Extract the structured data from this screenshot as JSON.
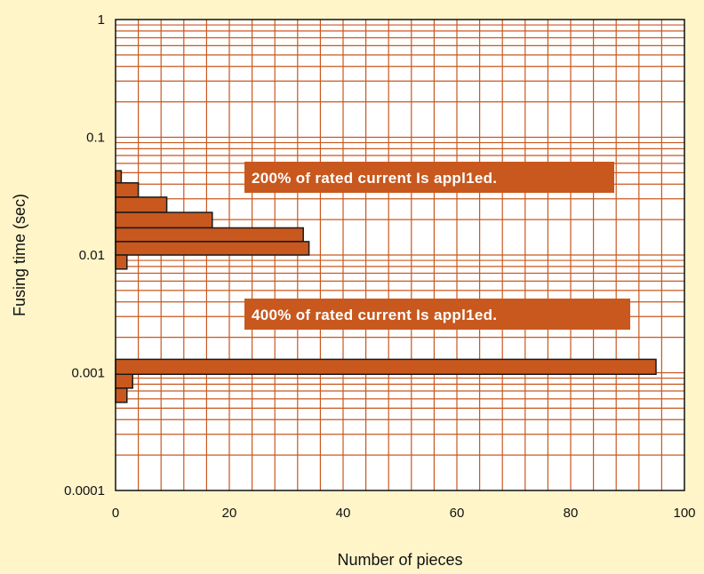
{
  "chart_data": {
    "type": "bar",
    "orientation": "horizontal",
    "xlabel": "Number of pieces",
    "ylabel": "Fusing time (sec)",
    "xlim": [
      0,
      100
    ],
    "ylim": [
      0.0001,
      1
    ],
    "yscale": "log",
    "grid": true,
    "x_ticks": [
      "0",
      "20",
      "40",
      "60",
      "80",
      "100"
    ],
    "y_ticks": [
      "1",
      "0.1",
      "0.01",
      "0.001",
      "0.0001"
    ],
    "series": [
      {
        "name": "200% of rated current Is appl1ed.",
        "bars": [
          {
            "y_low": 0.041,
            "y_high": 0.052,
            "value": 1
          },
          {
            "y_low": 0.031,
            "y_high": 0.041,
            "value": 4
          },
          {
            "y_low": 0.023,
            "y_high": 0.031,
            "value": 9
          },
          {
            "y_low": 0.017,
            "y_high": 0.023,
            "value": 17
          },
          {
            "y_low": 0.013,
            "y_high": 0.017,
            "value": 33
          },
          {
            "y_low": 0.01,
            "y_high": 0.013,
            "value": 34
          },
          {
            "y_low": 0.0076,
            "y_high": 0.01,
            "value": 2
          }
        ]
      },
      {
        "name": "400% of rated current Is appl1ed.",
        "bars": [
          {
            "y_low": 0.00097,
            "y_high": 0.0013,
            "value": 95
          },
          {
            "y_low": 0.00074,
            "y_high": 0.00097,
            "value": 3
          },
          {
            "y_low": 0.00056,
            "y_high": 0.00074,
            "value": 2
          }
        ]
      }
    ],
    "annotations": [
      "200% of rated current Is appl1ed.",
      "400% of rated current Is appl1ed."
    ],
    "colors": {
      "background": "#fff5c9",
      "plot_background": "#ffffff",
      "grid": "#c8581e",
      "bar_fill": "#c8581e",
      "bar_stroke": "#1a1a1a",
      "annotation_fill": "#c8581e"
    }
  }
}
